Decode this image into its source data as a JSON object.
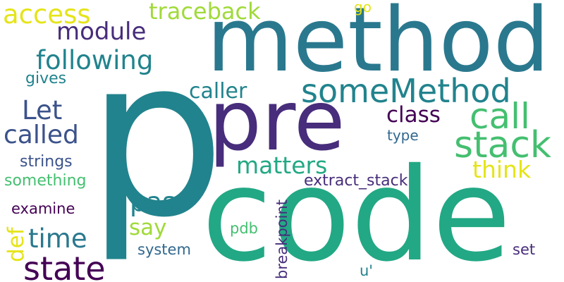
{
  "palette": {
    "teal_dark": "#21838d",
    "teal": "#2a788e",
    "indigo": "#472d7b",
    "purple": "#440154",
    "green": "#22a884",
    "green_light": "#44bf70",
    "lime": "#a0da39",
    "yellow": "#e5e419",
    "navy": "#31688e",
    "slate": "#3b528b"
  },
  "words": {
    "p": "p",
    "method": "method",
    "pre": "pre",
    "code": "code",
    "someMethod": "someMethod",
    "call": "call",
    "stack": "stack",
    "access": "access",
    "traceback": "traceback",
    "go": "go",
    "module": "module",
    "following": "following",
    "gives": "gives",
    "caller": "caller",
    "Let": "Let",
    "class": "class",
    "called": "called",
    "type": "type",
    "think": "think",
    "strings": "strings",
    "matters": "matters",
    "something": "something",
    "extract_stack": "extract_stack",
    "pass": "pass",
    "examine": "examine",
    "say": "say",
    "def": "def",
    "time": "time",
    "pdb": "pdb",
    "breakpoint": "breakpoint",
    "system": "system",
    "set": "set",
    "state": "state",
    "u_quote": "u'"
  }
}
